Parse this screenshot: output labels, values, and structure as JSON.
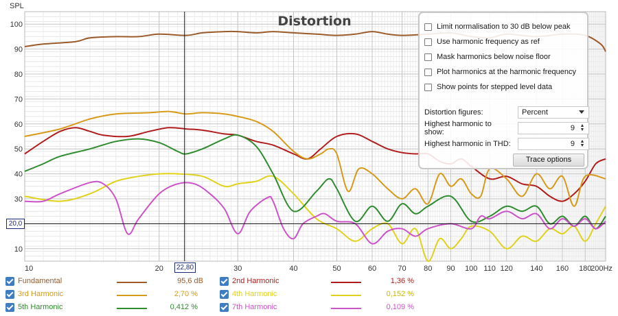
{
  "chart_data": {
    "type": "line",
    "title": "Distortion",
    "ylabel": "SPL",
    "xlabel": "",
    "x_scale": "log",
    "xlim": [
      10,
      200
    ],
    "ylim": [
      5,
      105
    ],
    "x_ticks": [
      {
        "v": 10,
        "label": "10"
      },
      {
        "v": 20,
        "label": "20"
      },
      {
        "v": 30,
        "label": "30"
      },
      {
        "v": 40,
        "label": "40"
      },
      {
        "v": 50,
        "label": "50"
      },
      {
        "v": 60,
        "label": "60"
      },
      {
        "v": 70,
        "label": "70"
      },
      {
        "v": 80,
        "label": "80"
      },
      {
        "v": 90,
        "label": "90"
      },
      {
        "v": 100,
        "label": "100"
      },
      {
        "v": 110,
        "label": "110"
      },
      {
        "v": 120,
        "label": "120"
      },
      {
        "v": 140,
        "label": "140"
      },
      {
        "v": 160,
        "label": "160"
      },
      {
        "v": 180,
        "label": "180"
      },
      {
        "v": 200,
        "label": "200Hz"
      }
    ],
    "y_ticks": [
      10,
      20,
      30,
      40,
      50,
      60,
      70,
      80,
      90,
      100
    ],
    "grid": true,
    "cursor": {
      "x_label": "22,80",
      "y_label": "20,0",
      "x": 22.8,
      "y": 20
    },
    "series": [
      {
        "name": "Fundamental",
        "color": "#9b5a2a",
        "points": [
          [
            10,
            91
          ],
          [
            11,
            92
          ],
          [
            13,
            93
          ],
          [
            14,
            94.5
          ],
          [
            16,
            95
          ],
          [
            18,
            95
          ],
          [
            20,
            96
          ],
          [
            23,
            95.5
          ],
          [
            25,
            96.5
          ],
          [
            28,
            97
          ],
          [
            30,
            97
          ],
          [
            33,
            96.5
          ],
          [
            36,
            97
          ],
          [
            40,
            96.5
          ],
          [
            45,
            96
          ],
          [
            50,
            95.5
          ],
          [
            55,
            96
          ],
          [
            60,
            97
          ],
          [
            65,
            96
          ],
          [
            70,
            95.5
          ],
          [
            80,
            96
          ],
          [
            90,
            96.5
          ],
          [
            100,
            95
          ],
          [
            110,
            94.5
          ],
          [
            120,
            96
          ],
          [
            140,
            95
          ],
          [
            160,
            96
          ],
          [
            180,
            95.5
          ],
          [
            195,
            92
          ],
          [
            200,
            89
          ]
        ]
      },
      {
        "name": "2nd Harmonic",
        "color": "#b01c1c",
        "points": [
          [
            10,
            48
          ],
          [
            11,
            53
          ],
          [
            12,
            57
          ],
          [
            13,
            58.5
          ],
          [
            14,
            57
          ],
          [
            15,
            55.5
          ],
          [
            17,
            55
          ],
          [
            19,
            57
          ],
          [
            21,
            58.5
          ],
          [
            23,
            58
          ],
          [
            25,
            57.5
          ],
          [
            28,
            56
          ],
          [
            30,
            55.5
          ],
          [
            33,
            53
          ],
          [
            36,
            51.5
          ],
          [
            40,
            48
          ],
          [
            43,
            46
          ],
          [
            46,
            50
          ],
          [
            50,
            55
          ],
          [
            55,
            56
          ],
          [
            60,
            53
          ],
          [
            65,
            50
          ],
          [
            70,
            48.5
          ],
          [
            75,
            48
          ],
          [
            80,
            48
          ],
          [
            85,
            45
          ],
          [
            90,
            44
          ],
          [
            95,
            46
          ],
          [
            100,
            43
          ],
          [
            110,
            38
          ],
          [
            120,
            39
          ],
          [
            130,
            36
          ],
          [
            140,
            35
          ],
          [
            150,
            31
          ],
          [
            160,
            29
          ],
          [
            170,
            32
          ],
          [
            180,
            37
          ],
          [
            190,
            44
          ],
          [
            200,
            46
          ]
        ]
      },
      {
        "name": "3rd Harmonic",
        "color": "#d69a18",
        "points": [
          [
            10,
            55
          ],
          [
            12,
            58
          ],
          [
            14,
            62
          ],
          [
            16,
            64
          ],
          [
            19,
            64.5
          ],
          [
            21,
            65
          ],
          [
            23,
            64
          ],
          [
            25,
            64.5
          ],
          [
            28,
            64
          ],
          [
            30,
            63
          ],
          [
            33,
            61
          ],
          [
            36,
            57
          ],
          [
            40,
            49
          ],
          [
            43,
            46
          ],
          [
            46,
            48
          ],
          [
            48,
            50
          ],
          [
            50,
            48
          ],
          [
            53,
            33
          ],
          [
            56,
            42
          ],
          [
            60,
            40
          ],
          [
            65,
            34
          ],
          [
            70,
            30
          ],
          [
            75,
            34
          ],
          [
            80,
            28
          ],
          [
            85,
            40
          ],
          [
            90,
            35
          ],
          [
            95,
            38
          ],
          [
            100,
            32
          ],
          [
            105,
            31
          ],
          [
            110,
            42
          ],
          [
            120,
            38
          ],
          [
            130,
            31
          ],
          [
            140,
            40
          ],
          [
            150,
            34
          ],
          [
            160,
            39
          ],
          [
            170,
            27
          ],
          [
            180,
            39
          ],
          [
            200,
            38
          ]
        ]
      },
      {
        "name": "4th Harmonic",
        "color": "#e0d21a",
        "points": [
          [
            10,
            31
          ],
          [
            12,
            29
          ],
          [
            14,
            32
          ],
          [
            16,
            37
          ],
          [
            18,
            39
          ],
          [
            20,
            40
          ],
          [
            22,
            40
          ],
          [
            25,
            39
          ],
          [
            28,
            35
          ],
          [
            30,
            36
          ],
          [
            33,
            37
          ],
          [
            36,
            39
          ],
          [
            40,
            32
          ],
          [
            45,
            22
          ],
          [
            50,
            18
          ],
          [
            55,
            13
          ],
          [
            60,
            18
          ],
          [
            65,
            20
          ],
          [
            70,
            12
          ],
          [
            75,
            18
          ],
          [
            80,
            5
          ],
          [
            85,
            14
          ],
          [
            90,
            10
          ],
          [
            95,
            14
          ],
          [
            100,
            19
          ],
          [
            110,
            17
          ],
          [
            120,
            10
          ],
          [
            130,
            15
          ],
          [
            140,
            13
          ],
          [
            150,
            18
          ],
          [
            160,
            16
          ],
          [
            170,
            19
          ],
          [
            180,
            13
          ],
          [
            190,
            20
          ],
          [
            200,
            27
          ]
        ]
      },
      {
        "name": "5th Harmonic",
        "color": "#2e8b2e",
        "points": [
          [
            10,
            41
          ],
          [
            11,
            44
          ],
          [
            12,
            47
          ],
          [
            14,
            50
          ],
          [
            16,
            53
          ],
          [
            18,
            54
          ],
          [
            20,
            52.5
          ],
          [
            22,
            49
          ],
          [
            23,
            48
          ],
          [
            25,
            50
          ],
          [
            28,
            54
          ],
          [
            30,
            55.5
          ],
          [
            33,
            51
          ],
          [
            36,
            40
          ],
          [
            40,
            25
          ],
          [
            45,
            33
          ],
          [
            48,
            38
          ],
          [
            50,
            34
          ],
          [
            55,
            21
          ],
          [
            60,
            27
          ],
          [
            65,
            21
          ],
          [
            70,
            28
          ],
          [
            75,
            24
          ],
          [
            80,
            27
          ],
          [
            90,
            31
          ],
          [
            100,
            21
          ],
          [
            110,
            23
          ],
          [
            120,
            27
          ],
          [
            130,
            25
          ],
          [
            140,
            27
          ],
          [
            150,
            20
          ],
          [
            160,
            23
          ],
          [
            170,
            19
          ],
          [
            180,
            23
          ],
          [
            190,
            18
          ],
          [
            200,
            23
          ]
        ]
      },
      {
        "name": "7th Harmonic",
        "color": "#cc52c8",
        "points": [
          [
            10,
            29
          ],
          [
            11,
            29
          ],
          [
            12,
            32
          ],
          [
            14,
            36.5
          ],
          [
            15,
            36
          ],
          [
            16,
            30
          ],
          [
            17,
            16
          ],
          [
            18,
            22
          ],
          [
            20,
            32
          ],
          [
            22,
            36
          ],
          [
            24,
            36
          ],
          [
            26,
            32
          ],
          [
            28,
            26
          ],
          [
            30,
            16
          ],
          [
            32,
            25
          ],
          [
            35,
            30.5
          ],
          [
            36,
            29
          ],
          [
            38,
            18
          ],
          [
            40,
            14
          ],
          [
            42,
            20
          ],
          [
            45,
            23
          ],
          [
            47,
            24
          ],
          [
            50,
            21
          ],
          [
            55,
            20
          ],
          [
            60,
            12
          ],
          [
            65,
            17
          ],
          [
            70,
            18
          ],
          [
            75,
            15
          ],
          [
            80,
            18
          ],
          [
            90,
            20
          ],
          [
            100,
            18
          ],
          [
            105,
            23
          ],
          [
            110,
            22
          ],
          [
            120,
            25
          ],
          [
            130,
            22
          ],
          [
            140,
            24
          ],
          [
            150,
            18
          ],
          [
            160,
            22
          ],
          [
            170,
            19
          ],
          [
            180,
            22
          ],
          [
            190,
            18
          ],
          [
            200,
            21
          ]
        ]
      }
    ]
  },
  "legend": [
    {
      "name": "Fundamental",
      "value": "95,6 dB",
      "color": "#9b5a2a"
    },
    {
      "name": "2nd Harmonic",
      "value": "1,36 %",
      "color": "#b01c1c"
    },
    {
      "name": "3rd Harmonic",
      "value": "2,70 %",
      "color": "#d69a18"
    },
    {
      "name": "4th Harmonic",
      "value": "0,152 %",
      "color": "#e0d21a"
    },
    {
      "name": "5th Harmonic",
      "value": "0,412 %",
      "color": "#2e8b2e"
    },
    {
      "name": "7th Harmonic",
      "value": "0,109 %",
      "color": "#cc52c8"
    }
  ],
  "panel": {
    "checkboxes": [
      {
        "label": "Limit normalisation to 30 dB below peak",
        "checked": false
      },
      {
        "label": "Use harmonic frequency as ref",
        "checked": false
      },
      {
        "label": "Mask harmonics below noise floor",
        "checked": false
      },
      {
        "label": "Plot harmonics at the harmonic frequency",
        "checked": false
      },
      {
        "label": "Show points for stepped level data",
        "checked": false
      }
    ],
    "distortion_figures_label": "Distortion figures:",
    "distortion_figures_value": "Percent",
    "highest_show_label": "Highest harmonic to show:",
    "highest_show_value": "9",
    "highest_thd_label": "Highest harmonic in THD:",
    "highest_thd_value": "9",
    "trace_options_label": "Trace options"
  }
}
